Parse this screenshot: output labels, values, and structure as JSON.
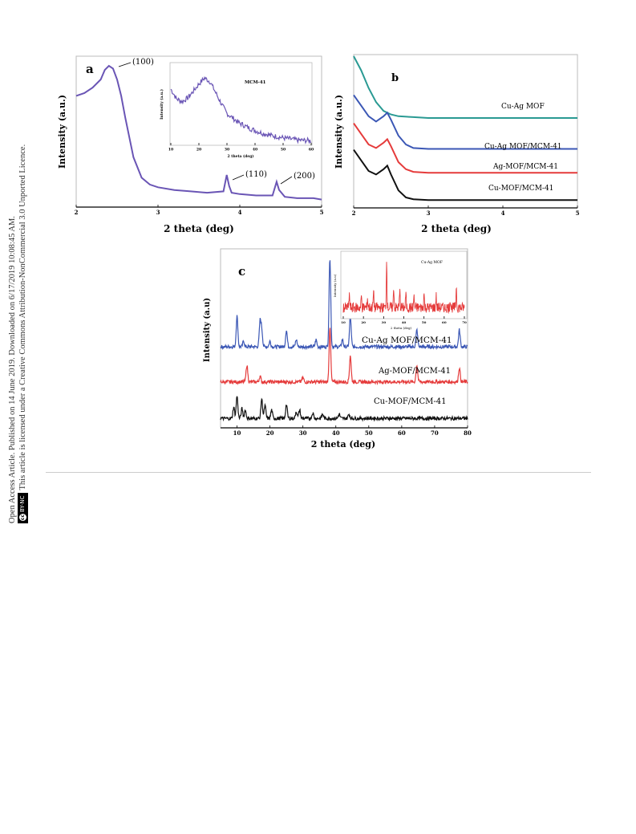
{
  "sidebar": {
    "line1": "Open Access Article. Published on 14 June 2019. Downloaded on 6/17/2019 10:08:45 AM.",
    "line2": "This article is licensed under a Creative Commons Attribution-NonCommercial 3.0 Unported Licence.",
    "badge_cc": "cc",
    "badge_text": "BY-NC"
  },
  "chart_data": [
    {
      "panel_label": "a",
      "type": "line",
      "xlabel": "2 theta (deg)",
      "ylabel": "Intensity (a.u.)",
      "xlim": [
        2,
        5
      ],
      "xticks": [
        "2",
        "3",
        "4",
        "5"
      ],
      "color": "#6a55b5",
      "series": [
        {
          "name": "",
          "x": [
            2.0,
            2.1,
            2.2,
            2.3,
            2.35,
            2.4,
            2.45,
            2.5,
            2.55,
            2.6,
            2.7,
            2.8,
            2.9,
            3.0,
            3.2,
            3.4,
            3.6,
            3.8,
            3.84,
            3.87,
            3.9,
            4.0,
            4.2,
            4.4,
            4.45,
            4.48,
            4.55,
            4.7,
            4.9,
            5.0
          ],
          "y": [
            0.78,
            0.8,
            0.84,
            0.9,
            0.97,
            1.0,
            0.98,
            0.9,
            0.78,
            0.62,
            0.33,
            0.18,
            0.13,
            0.11,
            0.09,
            0.08,
            0.07,
            0.08,
            0.2,
            0.12,
            0.07,
            0.06,
            0.05,
            0.05,
            0.15,
            0.09,
            0.04,
            0.03,
            0.03,
            0.02
          ]
        }
      ],
      "annotations": [
        "(100)",
        "(110)",
        "(200)"
      ],
      "inset": {
        "title": "MCM-41",
        "xlabel": "2 theta (deg)",
        "ylabel": "Intensity (a.u.)",
        "xlim": [
          10,
          60
        ],
        "xticks": [
          "10",
          "20",
          "30",
          "40",
          "50",
          "60"
        ],
        "x": [
          10,
          12,
          14,
          16,
          18,
          20,
          22,
          24,
          26,
          28,
          30,
          34,
          38,
          42,
          46,
          50,
          55,
          60
        ],
        "y": [
          0.75,
          0.62,
          0.58,
          0.63,
          0.72,
          0.82,
          0.9,
          0.85,
          0.7,
          0.55,
          0.42,
          0.3,
          0.22,
          0.16,
          0.12,
          0.09,
          0.06,
          0.05
        ]
      }
    },
    {
      "panel_label": "b",
      "type": "line",
      "xlabel": "2 theta (deg)",
      "ylabel": "Intensity (a.u.)",
      "xlim": [
        2,
        5
      ],
      "xticks": [
        "2",
        "3",
        "4",
        "5"
      ],
      "series": [
        {
          "name": "Cu-Ag MOF",
          "color": "#2a9a93",
          "x": [
            2.0,
            2.1,
            2.2,
            2.3,
            2.4,
            2.5,
            2.6,
            2.8,
            3.0,
            3.5,
            4.0,
            5.0
          ],
          "y": [
            1.0,
            0.92,
            0.82,
            0.74,
            0.69,
            0.67,
            0.66,
            0.655,
            0.65,
            0.65,
            0.65,
            0.65
          ]
        },
        {
          "name": "Cu-Ag MOF/MCM-41",
          "color": "#3b57b5",
          "x": [
            2.0,
            2.1,
            2.2,
            2.3,
            2.4,
            2.45,
            2.5,
            2.6,
            2.7,
            2.8,
            3.0,
            4.0,
            5.0
          ],
          "y": [
            0.78,
            0.72,
            0.66,
            0.63,
            0.66,
            0.68,
            0.64,
            0.55,
            0.5,
            0.48,
            0.475,
            0.475,
            0.475
          ]
        },
        {
          "name": "Ag-MOF/MCM-41",
          "color": "#e53b3b",
          "x": [
            2.0,
            2.1,
            2.2,
            2.3,
            2.4,
            2.45,
            2.5,
            2.6,
            2.7,
            2.8,
            3.0,
            4.0,
            5.0
          ],
          "y": [
            0.62,
            0.56,
            0.5,
            0.48,
            0.51,
            0.53,
            0.49,
            0.4,
            0.36,
            0.345,
            0.34,
            0.34,
            0.34
          ]
        },
        {
          "name": "Cu-MOF/MCM-41",
          "color": "#111111",
          "x": [
            2.0,
            2.1,
            2.2,
            2.3,
            2.4,
            2.45,
            2.5,
            2.6,
            2.7,
            2.8,
            3.0,
            4.0,
            5.0
          ],
          "y": [
            0.47,
            0.41,
            0.35,
            0.33,
            0.36,
            0.38,
            0.33,
            0.24,
            0.2,
            0.19,
            0.185,
            0.185,
            0.185
          ]
        }
      ]
    },
    {
      "panel_label": "c",
      "type": "line",
      "xlabel": "2 theta (deg)",
      "ylabel": "Intensity (a.u)",
      "xlim": [
        5,
        80
      ],
      "xticks": [
        "10",
        "20",
        "30",
        "40",
        "50",
        "60",
        "70",
        "80"
      ],
      "series": [
        {
          "name": "Cu-Ag MOF/MCM-41",
          "color": "#3b57b5",
          "baseline": 0.56,
          "peaks": [
            [
              10.0,
              0.22
            ],
            [
              12.0,
              0.04
            ],
            [
              17.0,
              0.18
            ],
            [
              17.5,
              0.12
            ],
            [
              20.0,
              0.04
            ],
            [
              25.0,
              0.12
            ],
            [
              28.0,
              0.05
            ],
            [
              34.0,
              0.05
            ],
            [
              38.2,
              0.64
            ],
            [
              42.0,
              0.05
            ],
            [
              44.4,
              0.22
            ],
            [
              64.6,
              0.12
            ],
            [
              77.5,
              0.12
            ]
          ]
        },
        {
          "name": "Ag-MOF/MCM-41",
          "color": "#e53b3b",
          "baseline": 0.31,
          "peaks": [
            [
              13.0,
              0.12
            ],
            [
              17.0,
              0.04
            ],
            [
              30.0,
              0.03
            ],
            [
              38.2,
              0.38
            ],
            [
              44.4,
              0.19
            ],
            [
              64.6,
              0.12
            ],
            [
              77.5,
              0.1
            ]
          ]
        },
        {
          "name": "Cu-MOF/MCM-41",
          "color": "#111111",
          "baseline": 0.05,
          "peaks": [
            [
              9.0,
              0.08
            ],
            [
              10.0,
              0.16
            ],
            [
              11.5,
              0.07
            ],
            [
              12.5,
              0.06
            ],
            [
              17.5,
              0.14
            ],
            [
              18.5,
              0.09
            ],
            [
              20.5,
              0.06
            ],
            [
              25.0,
              0.1
            ],
            [
              28.0,
              0.05
            ],
            [
              29.0,
              0.06
            ],
            [
              33.0,
              0.04
            ],
            [
              36.0,
              0.03
            ],
            [
              41.0,
              0.03
            ],
            [
              44.0,
              0.03
            ]
          ]
        }
      ],
      "inset": {
        "title": "Cu-Ag MOF",
        "xlabel": "2 theta (deg)",
        "ylabel": "Intensity (a.u)",
        "xlim": [
          10,
          70
        ],
        "xticks": [
          "10",
          "20",
          "30",
          "40",
          "50",
          "60",
          "70"
        ],
        "color": "#e53b3b",
        "peaks": [
          [
            13.0,
            0.3
          ],
          [
            19.0,
            0.25
          ],
          [
            22.0,
            0.2
          ],
          [
            25.0,
            0.35
          ],
          [
            31.5,
            1.0
          ],
          [
            35.0,
            0.45
          ],
          [
            38.0,
            0.35
          ],
          [
            41.0,
            0.3
          ],
          [
            45.0,
            0.25
          ],
          [
            50.0,
            0.3
          ],
          [
            56.0,
            0.25
          ],
          [
            63.0,
            0.2
          ],
          [
            66.0,
            0.45
          ]
        ]
      }
    }
  ]
}
